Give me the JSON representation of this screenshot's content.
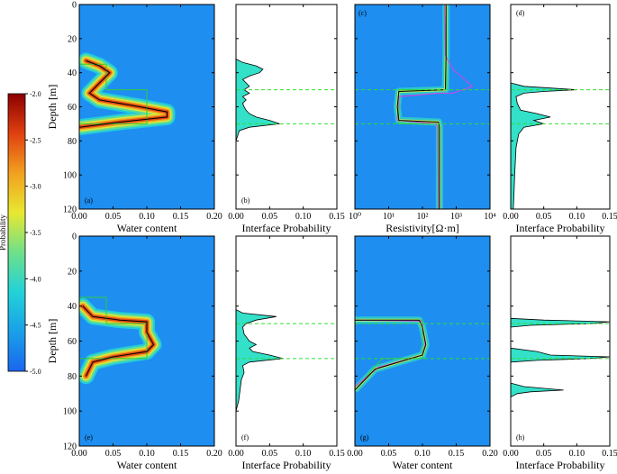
{
  "figure": {
    "colorbar": {
      "label": "Probability",
      "ticks": [
        "-2.0",
        "-2.5",
        "-3.0",
        "-3.5",
        "-4.0",
        "-4.5",
        "-5.0"
      ],
      "range": [
        -5.0,
        -2.0
      ],
      "colors": [
        "#1a66ee",
        "#1aa0e8",
        "#22d2d8",
        "#6ee08a",
        "#e8e830",
        "#f2a020",
        "#e04010",
        "#8c0000"
      ]
    },
    "colors": {
      "background_field": "#1e8ef0",
      "hist_fill": "#33e0c8",
      "true_model": "#2ecc40",
      "max_likelihood": "#000000",
      "dashed_interface": "#33dd33",
      "magenta_line": "#e040e0"
    }
  },
  "chart_data": [
    {
      "id": "a",
      "type": "heatmap",
      "panel_label": "(a)",
      "xlabel": "Water content",
      "ylabel": "Depth [m]",
      "xlim": [
        0,
        0.2
      ],
      "ylim": [
        120,
        0
      ],
      "xticks": [
        "0.00",
        "0.05",
        "0.10",
        "0.15",
        "0.20"
      ],
      "yticks": [
        "0",
        "20",
        "40",
        "60",
        "80",
        "100",
        "120"
      ],
      "true_model": {
        "x": [
          0,
          0,
          0.04,
          0.04,
          0.1,
          0.1,
          0,
          0
        ],
        "y": [
          0,
          35,
          35,
          50,
          50,
          70,
          70,
          120
        ]
      },
      "max_likelihood": {
        "x": [
          0.01,
          0.03,
          0.045,
          0.03,
          0.015,
          0.03,
          0.09,
          0.13,
          0.13,
          0.06,
          0.0
        ],
        "y": [
          33,
          36,
          40,
          46,
          52,
          56,
          60,
          63,
          66,
          69,
          72
        ]
      }
    },
    {
      "id": "b",
      "type": "area",
      "panel_label": "(b)",
      "xlabel": "Interface Probability",
      "ylabel": "",
      "xlim": [
        0,
        0.15
      ],
      "ylim": [
        120,
        0
      ],
      "xticks": [
        "0.00",
        "0.05",
        "0.10",
        "0.15"
      ],
      "interfaces": [
        50,
        70
      ],
      "profile": {
        "depth": [
          0,
          32,
          34,
          36,
          38,
          40,
          42,
          44,
          46,
          48,
          50,
          52,
          54,
          56,
          58,
          60,
          62,
          64,
          66,
          68,
          70,
          72,
          74,
          80
        ],
        "prob": [
          0,
          0,
          0.01,
          0.03,
          0.04,
          0.035,
          0.02,
          0.01,
          0.015,
          0.02,
          0.012,
          0.02,
          0.01,
          0.015,
          0.01,
          0.012,
          0.015,
          0.02,
          0.03,
          0.05,
          0.065,
          0.02,
          0.005,
          0
        ]
      }
    },
    {
      "id": "c",
      "type": "line",
      "panel_label": "(c)",
      "xlabel": "Resistivity[Ω·m]",
      "ylabel": "",
      "xscale": "log",
      "xlim": [
        1,
        10000
      ],
      "ylim": [
        120,
        0
      ],
      "xticks": [
        "10⁰",
        "10¹",
        "10²",
        "10³",
        "10⁴"
      ],
      "interfaces": [
        50,
        70
      ],
      "true_model": {
        "x": [
          500,
          500,
          20,
          20,
          300,
          300
        ],
        "y": [
          0,
          50,
          50,
          70,
          70,
          120
        ]
      },
      "max_likelihood": {
        "x": [
          500,
          500,
          480,
          20,
          18,
          20,
          300,
          320,
          320
        ],
        "y": [
          0,
          30,
          50,
          51,
          60,
          68,
          69,
          72,
          120
        ]
      },
      "magenta": {
        "x": [
          450,
          480,
          800,
          3000,
          800,
          300,
          20,
          18,
          250,
          280,
          300
        ],
        "y": [
          0,
          30,
          38,
          48,
          52,
          52,
          54,
          68,
          70,
          72,
          120
        ]
      }
    },
    {
      "id": "d",
      "type": "area",
      "panel_label": "(d)",
      "xlabel": "Interface Probability",
      "ylabel": "",
      "xlim": [
        0,
        0.15
      ],
      "ylim": [
        120,
        0
      ],
      "xticks": [
        "0.00",
        "0.05",
        "0.10",
        "0.15"
      ],
      "interfaces": [
        50,
        70
      ],
      "profile": {
        "depth": [
          0,
          46,
          48,
          49,
          50,
          51,
          52,
          54,
          58,
          62,
          64,
          66,
          68,
          70,
          72,
          76,
          84,
          100,
          110,
          120
        ],
        "prob": [
          0,
          0,
          0.02,
          0.06,
          0.1,
          0.05,
          0.02,
          0.008,
          0.01,
          0.015,
          0.04,
          0.06,
          0.035,
          0.05,
          0.02,
          0.012,
          0.008,
          0.006,
          0.005,
          0.004
        ]
      }
    },
    {
      "id": "e",
      "type": "heatmap",
      "panel_label": "(e)",
      "xlabel": "Water content",
      "ylabel": "Depth [m]",
      "xlim": [
        0,
        0.2
      ],
      "ylim": [
        120,
        0
      ],
      "xticks": [
        "0.00",
        "0.05",
        "0.10",
        "0.15",
        "0.20"
      ],
      "yticks": [
        "0",
        "20",
        "40",
        "60",
        "80",
        "100",
        "120"
      ],
      "true_model": {
        "x": [
          0,
          0,
          0.04,
          0.04,
          0.1,
          0.1,
          0,
          0
        ],
        "y": [
          0,
          35,
          35,
          50,
          50,
          70,
          70,
          120
        ]
      },
      "max_likelihood": {
        "x": [
          0.005,
          0.02,
          0.06,
          0.1,
          0.1,
          0.11,
          0.1,
          0.05,
          0.02,
          0.01
        ],
        "y": [
          40,
          46,
          48,
          49,
          55,
          62,
          66,
          69,
          72,
          80
        ]
      }
    },
    {
      "id": "f",
      "type": "area",
      "panel_label": "(f)",
      "xlabel": "Interface Probability",
      "ylabel": "",
      "xlim": [
        0,
        0.15
      ],
      "ylim": [
        120,
        0
      ],
      "xticks": [
        "0.00",
        "0.05",
        "0.10",
        "0.15"
      ],
      "interfaces": [
        50,
        70
      ],
      "profile": {
        "depth": [
          0,
          42,
          44,
          46,
          48,
          50,
          52,
          56,
          60,
          62,
          64,
          66,
          68,
          70,
          72,
          74,
          78,
          82,
          88,
          94,
          100
        ],
        "prob": [
          0,
          0,
          0.01,
          0.06,
          0.03,
          0.015,
          0.01,
          0.012,
          0.02,
          0.03,
          0.02,
          0.025,
          0.05,
          0.07,
          0.02,
          0.01,
          0.012,
          0.008,
          0.006,
          0.004,
          0
        ]
      }
    },
    {
      "id": "g",
      "type": "line",
      "panel_label": "(g)",
      "xlabel": "Water content",
      "ylabel": "",
      "xlim": [
        0,
        0.2
      ],
      "ylim": [
        120,
        0
      ],
      "xticks": [
        "0.00",
        "0.05",
        "0.10",
        "0.15",
        "0.20"
      ],
      "interfaces": [
        50,
        70
      ],
      "true_model": {
        "x": [
          0,
          0,
          0.1,
          0.1,
          0.04,
          0.0
        ],
        "y": [
          0,
          48,
          48,
          70,
          70,
          88
        ]
      },
      "max_likelihood": {
        "x": [
          0.0,
          0.095,
          0.1,
          0.105,
          0.1,
          0.03,
          0.0
        ],
        "y": [
          48,
          48,
          52,
          62,
          68,
          76,
          88
        ]
      },
      "magenta": {
        "x": [
          0.0,
          0.098,
          0.1,
          0.104,
          0.1,
          0.035,
          0.0
        ],
        "y": [
          48,
          48.5,
          52,
          62,
          68,
          75,
          86
        ]
      }
    },
    {
      "id": "h",
      "type": "area",
      "panel_label": "(h)",
      "xlabel": "Interface Probability",
      "ylabel": "",
      "xlim": [
        0,
        0.15
      ],
      "ylim": [
        120,
        0
      ],
      "xticks": [
        "0.00",
        "0.05",
        "0.10",
        "0.15"
      ],
      "interfaces": [
        50,
        70
      ],
      "profile": {
        "depth": [
          0,
          47,
          48,
          49,
          50,
          51,
          52,
          64,
          66,
          68,
          69,
          70,
          71,
          72,
          84,
          86,
          88,
          89,
          90,
          92
        ],
        "prob": [
          0,
          0,
          0.05,
          0.15,
          0.12,
          0.03,
          0,
          0,
          0.04,
          0.06,
          0.15,
          0.12,
          0.04,
          0,
          0,
          0.02,
          0.08,
          0.03,
          0.01,
          0
        ]
      }
    }
  ]
}
